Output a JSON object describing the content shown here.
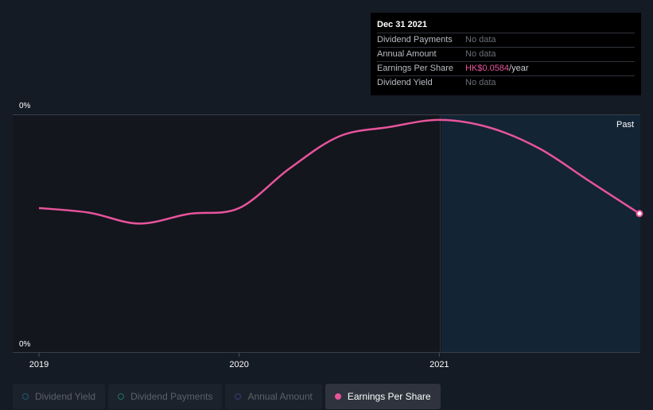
{
  "tooltip": {
    "date": "Dec 31 2021",
    "rows": [
      {
        "label": "Dividend Payments",
        "value": "No data"
      },
      {
        "label": "Annual Amount",
        "value": "No data"
      },
      {
        "label": "Earnings Per Share",
        "value_accent": "HK$0.0584",
        "value_suffix": "/year"
      },
      {
        "label": "Dividend Yield",
        "value": "No data"
      }
    ]
  },
  "legend": [
    {
      "label": "Dividend Yield",
      "color": "#1f5a7a",
      "active": false
    },
    {
      "label": "Dividend Payments",
      "color": "#1f6f6a",
      "active": false
    },
    {
      "label": "Annual Amount",
      "color": "#3a3a7a",
      "active": false
    },
    {
      "label": "Earnings Per Share",
      "color": "#e8549c",
      "active": true
    }
  ],
  "colors": {
    "background": "#151b24",
    "plot_past": "#13161d",
    "forecast_region": "#132435",
    "eps_line": "#e8549c"
  },
  "chart_data": {
    "type": "line",
    "title": "",
    "xlabel": "",
    "ylabel": "",
    "y_top_label": "0%",
    "y_bottom_label": "0%",
    "past_label": "Past",
    "x_ticks": [
      {
        "label": "2019",
        "value": 2019.0
      },
      {
        "label": "2020",
        "value": 2020.0
      },
      {
        "label": "2021",
        "value": 2021.0
      }
    ],
    "xlim": [
      2019.0,
      2022.0
    ],
    "ylim": [
      0.0,
      0.1
    ],
    "grid": false,
    "highlight_from": 2021.0,
    "series": [
      {
        "name": "Earnings Per Share",
        "x": [
          2019.0,
          2019.25,
          2019.5,
          2019.75,
          2020.0,
          2020.25,
          2020.5,
          2020.75,
          2021.0,
          2021.25,
          2021.5,
          2021.75,
          2022.0
        ],
        "y": [
          0.0607,
          0.0588,
          0.0542,
          0.0583,
          0.0607,
          0.0772,
          0.0908,
          0.0947,
          0.0977,
          0.0945,
          0.0857,
          0.072,
          0.0584
        ]
      }
    ]
  }
}
